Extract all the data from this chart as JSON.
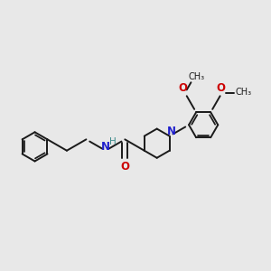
{
  "bg_color": "#e8e8e8",
  "bond_color": "#1a1a1a",
  "nitrogen_color": "#2020cc",
  "oxygen_color": "#cc0000",
  "hydrogen_color": "#3a8a8a",
  "bond_width": 1.4,
  "figsize": [
    3.0,
    3.0
  ],
  "dpi": 100,
  "xlim": [
    0,
    12
  ],
  "ylim": [
    0,
    12
  ]
}
